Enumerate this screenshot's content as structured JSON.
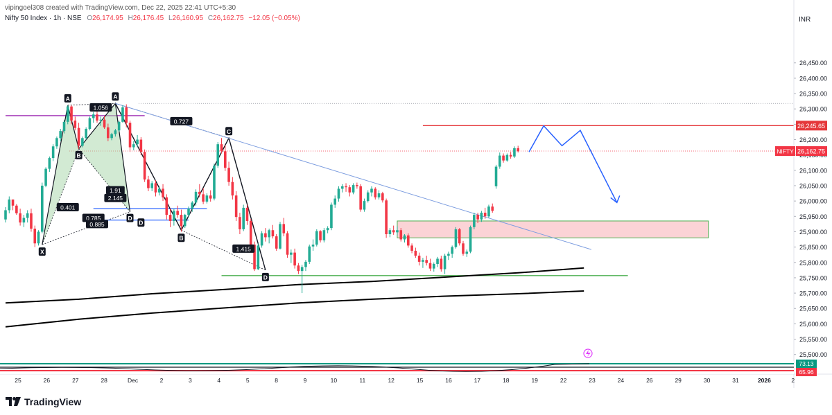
{
  "header": {
    "creator_line": "vipingoel308 created with TradingView.com, Dec 22, 2025 22:41 UTC+5:30"
  },
  "symbol": {
    "title": "Nifty 50 Index · 1h · NSE",
    "o_label": "O",
    "o_value": "26,174.95",
    "h_label": "H",
    "h_value": "26,176.45",
    "l_label": "L",
    "l_value": "26,160.95",
    "c_label": "C",
    "c_value": "26,162.75",
    "change": "−12.05 (−0.05%)"
  },
  "currency": "INR",
  "brand": "TradingView",
  "colors": {
    "up": "#22ab94",
    "down": "#f23645",
    "resistance_line": "#e5383b",
    "trendline": "#7f9fe0",
    "projection": "#2962ff",
    "harmonic_fill": "#a5d6a7",
    "zone_fill": "#fbd3d6",
    "support_line": "#4caf50",
    "purple_line": "#9c27b0",
    "ma": "#000000"
  },
  "chart_data": {
    "type": "candlestick",
    "symbol": "NIFTY",
    "timeframe": "1h",
    "price_axis": {
      "min": 25470,
      "max": 26560,
      "ticks": [
        "26,450.00",
        "26,400.00",
        "26,350.00",
        "26,300.00",
        "26,250.00",
        "26,200.00",
        "26,150.00",
        "26,100.00",
        "26,050.00",
        "26,000.00",
        "25,950.00",
        "25,900.00",
        "25,850.00",
        "25,800.00",
        "25,750.00",
        "25,700.00",
        "25,650.00",
        "25,600.00",
        "25,550.00",
        "25,500.00"
      ]
    },
    "time_axis": {
      "labels": [
        "25",
        "26",
        "27",
        "28",
        "Dec",
        "2",
        "3",
        "4",
        "5",
        "8",
        "9",
        "10",
        "11",
        "12",
        "15",
        "16",
        "17",
        "18",
        "19",
        "22",
        "23",
        "24",
        "26",
        "29",
        "30",
        "31",
        "2026",
        "2"
      ]
    },
    "price_tags": {
      "resistance": "26,245.65",
      "last_symbol": "NIFTY",
      "last_price": "26,162.75",
      "resistance_price": 26245.65,
      "last_value": 26162.75
    },
    "candles": [
      [
        25940,
        25980,
        25930,
        25970
      ],
      [
        25970,
        26015,
        25960,
        26005
      ],
      [
        26005,
        26000,
        25970,
        25985
      ],
      [
        25985,
        25990,
        25955,
        25960
      ],
      [
        25960,
        25975,
        25920,
        25930
      ],
      [
        25930,
        25955,
        25915,
        25945
      ],
      [
        25945,
        25970,
        25930,
        25960
      ],
      [
        25960,
        25975,
        25900,
        25910
      ],
      [
        25910,
        25920,
        25850,
        25862
      ],
      [
        25862,
        25905,
        25855,
        25900
      ],
      [
        25900,
        26060,
        25895,
        26050
      ],
      [
        26050,
        26110,
        26045,
        26105
      ],
      [
        26105,
        26145,
        26095,
        26140
      ],
      [
        26140,
        26185,
        26130,
        26178
      ],
      [
        26178,
        26210,
        26170,
        26205
      ],
      [
        26205,
        26235,
        26195,
        26228
      ],
      [
        26228,
        26265,
        26220,
        26258
      ],
      [
        26258,
        26312,
        26250,
        26308
      ],
      [
        26308,
        26312,
        26250,
        26262
      ],
      [
        26262,
        26275,
        26230,
        26238
      ],
      [
        26238,
        26255,
        26170,
        26180
      ],
      [
        26180,
        26210,
        26175,
        26205
      ],
      [
        26205,
        26240,
        26200,
        26235
      ],
      [
        26235,
        26275,
        26230,
        26270
      ],
      [
        26270,
        26290,
        26255,
        26282
      ],
      [
        26282,
        26295,
        26255,
        26262
      ],
      [
        26262,
        26275,
        26245,
        26265
      ],
      [
        26265,
        26278,
        26235,
        26240
      ],
      [
        26240,
        26252,
        26195,
        26205
      ],
      [
        26205,
        26222,
        26198,
        26218
      ],
      [
        26218,
        26235,
        26210,
        26230
      ],
      [
        26230,
        26262,
        26225,
        26258
      ],
      [
        26258,
        26312,
        26255,
        26305
      ],
      [
        26305,
        26315,
        26240,
        26255
      ],
      [
        26255,
        26262,
        26160,
        26175
      ],
      [
        26175,
        26195,
        26165,
        26185
      ],
      [
        26185,
        26215,
        26175,
        26200
      ],
      [
        26200,
        26208,
        26150,
        26160
      ],
      [
        26160,
        26168,
        26062,
        26070
      ],
      [
        26070,
        26082,
        26032,
        26042
      ],
      [
        26042,
        26065,
        26032,
        26058
      ],
      [
        26058,
        26068,
        26015,
        26028
      ],
      [
        26028,
        26048,
        26018,
        26040
      ],
      [
        26040,
        26055,
        26000,
        26012
      ],
      [
        26012,
        26022,
        25940,
        25955
      ],
      [
        25955,
        25975,
        25915,
        25935
      ],
      [
        25935,
        25975,
        25920,
        25968
      ],
      [
        25968,
        25985,
        25945,
        25955
      ],
      [
        25955,
        25972,
        25900,
        25918
      ],
      [
        25918,
        25958,
        25912,
        25955
      ],
      [
        25955,
        25982,
        25948,
        25975
      ],
      [
        25975,
        26000,
        25965,
        25995
      ],
      [
        25995,
        26038,
        25985,
        26030
      ],
      [
        26030,
        26055,
        26012,
        26022
      ],
      [
        26022,
        26042,
        25990,
        25998
      ],
      [
        25998,
        26025,
        25992,
        26018
      ],
      [
        26018,
        26035,
        25998,
        26008
      ],
      [
        26008,
        26122,
        26002,
        26115
      ],
      [
        26115,
        26192,
        26108,
        26185
      ],
      [
        26185,
        26205,
        26155,
        26162
      ],
      [
        26162,
        26182,
        26098,
        26108
      ],
      [
        26108,
        26128,
        26050,
        26062
      ],
      [
        26062,
        26078,
        26005,
        26018
      ],
      [
        26018,
        26032,
        25935,
        25948
      ],
      [
        25948,
        25962,
        25892,
        25908
      ],
      [
        25908,
        25988,
        25902,
        25978
      ],
      [
        25978,
        25988,
        25922,
        25935
      ],
      [
        25935,
        25942,
        25848,
        25858
      ],
      [
        25858,
        25868,
        25772,
        25778
      ],
      [
        25778,
        25862,
        25775,
        25855
      ],
      [
        25855,
        25902,
        25848,
        25895
      ],
      [
        25895,
        25912,
        25868,
        25882
      ],
      [
        25882,
        25910,
        25862,
        25905
      ],
      [
        25905,
        25922,
        25878,
        25885
      ],
      [
        25885,
        25892,
        25838,
        25845
      ],
      [
        25845,
        25932,
        25842,
        25925
      ],
      [
        25925,
        25945,
        25885,
        25895
      ],
      [
        25895,
        25902,
        25815,
        25825
      ],
      [
        25825,
        25842,
        25798,
        25832
      ],
      [
        25832,
        25845,
        25780,
        25790
      ],
      [
        25790,
        25798,
        25762,
        25772
      ],
      [
        25772,
        25792,
        25700,
        25785
      ],
      [
        25785,
        25808,
        25772,
        25802
      ],
      [
        25802,
        25858,
        25795,
        25852
      ],
      [
        25852,
        25875,
        25838,
        25858
      ],
      [
        25858,
        25908,
        25852,
        25902
      ],
      [
        25902,
        25905,
        25865,
        25872
      ],
      [
        25872,
        25912,
        25865,
        25905
      ],
      [
        25905,
        25918,
        25895,
        25912
      ],
      [
        25912,
        25995,
        25905,
        25988
      ],
      [
        25988,
        26018,
        25978,
        26008
      ],
      [
        26008,
        26048,
        25998,
        26040
      ],
      [
        26040,
        26055,
        26028,
        26048
      ],
      [
        26048,
        26058,
        26030,
        26045
      ],
      [
        26045,
        26052,
        26015,
        26028
      ],
      [
        26028,
        26058,
        26022,
        26052
      ],
      [
        26052,
        26060,
        26040,
        26048
      ],
      [
        26048,
        26055,
        25965,
        25972
      ],
      [
        25972,
        26008,
        25965,
        26000
      ],
      [
        26000,
        26035,
        25995,
        26028
      ],
      [
        26028,
        26048,
        26015,
        26040
      ],
      [
        26040,
        26045,
        26005,
        26012
      ],
      [
        26012,
        26035,
        26005,
        26025
      ],
      [
        26025,
        26030,
        25995,
        26002
      ],
      [
        26002,
        26008,
        25880,
        25892
      ],
      [
        25892,
        25912,
        25882,
        25905
      ],
      [
        25905,
        25920,
        25890,
        25898
      ],
      [
        25898,
        25918,
        25888,
        25905
      ],
      [
        25905,
        25912,
        25868,
        25875
      ],
      [
        25875,
        25892,
        25865,
        25888
      ],
      [
        25888,
        25895,
        25848,
        25855
      ],
      [
        25855,
        25862,
        25830,
        25838
      ],
      [
        25838,
        25848,
        25815,
        25822
      ],
      [
        25822,
        25832,
        25790,
        25802
      ],
      [
        25802,
        25815,
        25782,
        25808
      ],
      [
        25808,
        25822,
        25790,
        25798
      ],
      [
        25798,
        25812,
        25772,
        25780
      ],
      [
        25780,
        25800,
        25770,
        25795
      ],
      [
        25795,
        25818,
        25785,
        25812
      ],
      [
        25812,
        25822,
        25770,
        25778
      ],
      [
        25778,
        25828,
        25762,
        25822
      ],
      [
        25822,
        25835,
        25808,
        25828
      ],
      [
        25828,
        25855,
        25815,
        25850
      ],
      [
        25850,
        25915,
        25845,
        25908
      ],
      [
        25908,
        25912,
        25855,
        25862
      ],
      [
        25862,
        25870,
        25822,
        25828
      ],
      [
        25828,
        25842,
        25818,
        25835
      ],
      [
        25835,
        25920,
        25830,
        25915
      ],
      [
        25915,
        25962,
        25908,
        25955
      ],
      [
        25955,
        25962,
        25928,
        25940
      ],
      [
        25940,
        25968,
        25932,
        25962
      ],
      [
        25962,
        25978,
        25942,
        25950
      ],
      [
        25950,
        25988,
        25945,
        25982
      ],
      [
        25982,
        25992,
        25962,
        25968
      ],
      [
        26048,
        26118,
        26040,
        26112
      ],
      [
        26112,
        26158,
        26105,
        26148
      ],
      [
        26148,
        26155,
        26125,
        26132
      ],
      [
        26132,
        26155,
        26128,
        26150
      ],
      [
        26150,
        26160,
        26138,
        26145
      ],
      [
        26145,
        26178,
        26140,
        26172
      ],
      [
        26172,
        26180,
        26158,
        26162
      ]
    ],
    "moving_averages": [
      {
        "points": [
          [
            0,
            25668
          ],
          [
            20,
            25680
          ],
          [
            40,
            25698
          ],
          [
            60,
            25712
          ],
          [
            80,
            25728
          ],
          [
            100,
            25738
          ],
          [
            120,
            25752
          ],
          [
            140,
            25766
          ],
          [
            158,
            25782
          ]
        ]
      },
      {
        "points": [
          [
            0,
            25590
          ],
          [
            20,
            25615
          ],
          [
            40,
            25635
          ],
          [
            60,
            25652
          ],
          [
            80,
            25668
          ],
          [
            100,
            25680
          ],
          [
            120,
            25690
          ],
          [
            140,
            25698
          ],
          [
            158,
            25707
          ]
        ]
      }
    ],
    "harmonic_patterns": [
      {
        "points": [
          {
            "label": "X",
            "x": 10,
            "y": 25858
          },
          {
            "label": "A",
            "x": 17,
            "y": 26312
          },
          {
            "label": "B",
            "x": 20,
            "y": 26170
          },
          {
            "label": "C",
            "x": 30,
            "y": 26318
          },
          {
            "label": "D",
            "x": 34,
            "y": 25965
          }
        ],
        "ratios": [
          "0.401",
          "1.056",
          "1.91",
          "2.145",
          "0.785",
          "0.885"
        ]
      },
      {
        "points": [
          {
            "label": "A",
            "x": 30,
            "y": 26318
          },
          {
            "label": "B",
            "x": 48,
            "y": 25905
          },
          {
            "label": "C",
            "x": 61,
            "y": 26205
          },
          {
            "label": "D",
            "x": 71,
            "y": 25775
          }
        ],
        "ratios": [
          "0.727",
          "1.415"
        ]
      }
    ],
    "annotation_labels": [
      "X",
      "A",
      "B",
      "A",
      "D",
      "D",
      "B",
      "C",
      "D"
    ],
    "ratio_labels": [
      "1.056",
      "0.401",
      "1.91",
      "2.145",
      "0.785",
      "0.885",
      "0.727",
      "1.415"
    ],
    "zones": [
      {
        "x_start": 107,
        "x_end": 192,
        "y_top": 25935,
        "y_bottom": 25880
      }
    ],
    "horizontal_lines": [
      {
        "name": "resistance",
        "y": 26245.65,
        "x_start": 114
      },
      {
        "name": "support",
        "y": 25757,
        "x_start": 59,
        "x_end": 170
      },
      {
        "name": "purple-level",
        "y": 26278,
        "x_start": 0,
        "x_end": 38
      },
      {
        "name": "blue-level-1",
        "y": 25975,
        "x_start": 24,
        "x_end": 55
      },
      {
        "name": "blue-level-2",
        "y": 25938,
        "x_start": 24,
        "x_end": 50
      }
    ],
    "trendline": {
      "points": [
        [
          30,
          26318
        ],
        [
          160,
          25842
        ]
      ]
    },
    "projection_path": {
      "points": [
        [
          143,
          26160
        ],
        [
          147,
          26245
        ],
        [
          152,
          26180
        ],
        [
          157,
          26230
        ],
        [
          167,
          25995
        ]
      ]
    },
    "rsi_panel": {
      "label_1": "73.13",
      "label_2": "65.96"
    }
  }
}
